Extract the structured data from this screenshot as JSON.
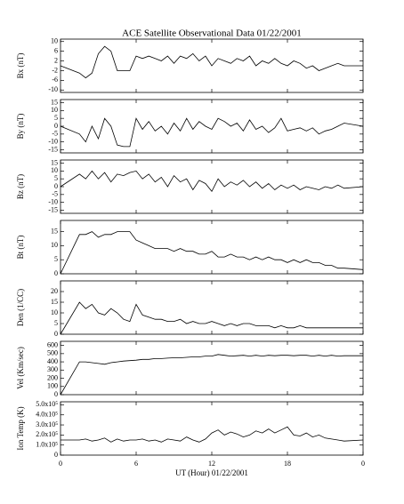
{
  "title": "ACE Satellite Observational Data   01/22/2001",
  "xlabel": "UT (Hour)  01/22/2001",
  "xlim": [
    0,
    24
  ],
  "xticks": [
    0,
    6,
    12,
    18,
    {
      "value": 24,
      "label": "0"
    }
  ],
  "chart_data": [
    {
      "type": "line",
      "ylabel": "Bx (nT)",
      "color": "#000000",
      "ylim": [
        -11,
        11
      ],
      "yticks": [
        -10,
        -6,
        -2,
        2,
        6,
        10
      ],
      "x": [
        0,
        1.5,
        2,
        2.5,
        3,
        3.5,
        4,
        4.5,
        5,
        5.5,
        6,
        6.5,
        7,
        7.5,
        8,
        8.5,
        9,
        9.5,
        10,
        10.5,
        11,
        11.5,
        12,
        12.5,
        13,
        13.5,
        14,
        14.5,
        15,
        15.5,
        16,
        16.5,
        17,
        17.5,
        18,
        18.5,
        19,
        19.5,
        20,
        20.5,
        21,
        21.5,
        22,
        22.5,
        24
      ],
      "values": [
        0,
        -3,
        -5,
        -3,
        5,
        8,
        6,
        -2,
        -2,
        -2,
        4,
        3,
        4,
        3,
        2,
        4,
        1,
        4,
        3,
        5,
        2,
        4,
        0,
        3,
        2,
        1,
        3,
        2,
        4,
        0,
        2,
        1,
        3,
        1,
        0,
        2,
        1,
        -1,
        0,
        -2,
        -1,
        0,
        1,
        0,
        0
      ]
    },
    {
      "type": "line",
      "ylabel": "By (nT)",
      "color": "#000000",
      "ylim": [
        -17,
        17
      ],
      "yticks": [
        -15,
        -10,
        -5,
        0,
        5,
        10,
        15
      ],
      "x": [
        0,
        1.5,
        2,
        2.5,
        3,
        3.5,
        4,
        4.5,
        5,
        5.5,
        6,
        6.5,
        7,
        7.5,
        8,
        8.5,
        9,
        9.5,
        10,
        10.5,
        11,
        11.5,
        12,
        12.5,
        13,
        13.5,
        14,
        14.5,
        15,
        15.5,
        16,
        16.5,
        17,
        17.5,
        18,
        18.5,
        19,
        19.5,
        20,
        20.5,
        21,
        21.5,
        22,
        22.5,
        24
      ],
      "values": [
        0,
        -5,
        -10,
        0,
        -8,
        5,
        0,
        -12,
        -13,
        -13,
        5,
        -2,
        3,
        -3,
        0,
        -5,
        2,
        -3,
        5,
        -2,
        3,
        0,
        -2,
        5,
        3,
        0,
        2,
        -3,
        4,
        -2,
        0,
        -4,
        -1,
        5,
        -3,
        -2,
        -1,
        -3,
        -1,
        -5,
        -3,
        -2,
        0,
        2,
        0
      ]
    },
    {
      "type": "line",
      "ylabel": "Bz (nT)",
      "color": "#000000",
      "ylim": [
        -17,
        17
      ],
      "yticks": [
        -15,
        -10,
        -5,
        0,
        5,
        10,
        15
      ],
      "x": [
        0,
        1.5,
        2,
        2.5,
        3,
        3.5,
        4,
        4.5,
        5,
        5.5,
        6,
        6.5,
        7,
        7.5,
        8,
        8.5,
        9,
        9.5,
        10,
        10.5,
        11,
        11.5,
        12,
        12.5,
        13,
        13.5,
        14,
        14.5,
        15,
        15.5,
        16,
        16.5,
        17,
        17.5,
        18,
        18.5,
        19,
        19.5,
        20,
        20.5,
        21,
        21.5,
        22,
        22.5,
        24
      ],
      "values": [
        0,
        8,
        5,
        10,
        5,
        9,
        3,
        8,
        7,
        9,
        10,
        5,
        8,
        3,
        6,
        0,
        7,
        3,
        5,
        -2,
        4,
        2,
        -3,
        5,
        0,
        3,
        1,
        4,
        0,
        3,
        -1,
        2,
        -2,
        1,
        -1,
        1,
        -2,
        0,
        -1,
        -2,
        0,
        -1,
        1,
        -1,
        0
      ]
    },
    {
      "type": "line",
      "ylabel": "Bt (nT)",
      "color": "#000000",
      "ylim": [
        0,
        19
      ],
      "yticks": [
        0,
        5,
        10,
        15
      ],
      "x": [
        0,
        1.5,
        2,
        2.5,
        3,
        3.5,
        4,
        4.5,
        5,
        5.5,
        6,
        6.5,
        7,
        7.5,
        8,
        8.5,
        9,
        9.5,
        10,
        10.5,
        11,
        11.5,
        12,
        12.5,
        13,
        13.5,
        14,
        14.5,
        15,
        15.5,
        16,
        16.5,
        17,
        17.5,
        18,
        18.5,
        19,
        19.5,
        20,
        20.5,
        21,
        21.5,
        22,
        22.5,
        24
      ],
      "values": [
        0,
        14,
        14,
        15,
        13,
        14,
        14,
        15,
        15,
        15,
        12,
        11,
        10,
        9,
        9,
        9,
        8,
        9,
        8,
        8,
        7,
        7,
        8,
        6,
        6,
        7,
        6,
        6,
        5,
        6,
        5,
        6,
        5,
        5,
        4,
        5,
        4,
        5,
        4,
        4,
        3,
        3,
        2,
        2,
        1.5
      ]
    },
    {
      "type": "line",
      "ylabel": "Den (1/CC)",
      "color": "#000000",
      "ylim": [
        0,
        25
      ],
      "yticks": [
        0,
        5,
        10,
        15,
        20
      ],
      "x": [
        0,
        1.5,
        2,
        2.5,
        3,
        3.5,
        4,
        4.5,
        5,
        5.5,
        6,
        6.5,
        7,
        7.5,
        8,
        8.5,
        9,
        9.5,
        10,
        10.5,
        11,
        11.5,
        12,
        12.5,
        13,
        13.5,
        14,
        14.5,
        15,
        15.5,
        16,
        16.5,
        17,
        17.5,
        18,
        18.5,
        19,
        19.5,
        20,
        20.5,
        21,
        21.5,
        22,
        22.5,
        24
      ],
      "values": [
        0,
        15,
        12,
        14,
        10,
        9,
        12,
        10,
        7,
        6,
        14,
        9,
        8,
        7,
        7,
        6,
        6,
        7,
        5,
        6,
        5,
        5,
        6,
        5,
        4,
        5,
        4,
        5,
        5,
        4,
        4,
        4,
        3,
        4,
        3,
        3,
        4,
        3,
        3,
        3,
        3,
        3,
        3,
        3,
        3
      ]
    },
    {
      "type": "line",
      "ylabel": "Vel (Km/sec)",
      "color": "#000000",
      "ylim": [
        0,
        650
      ],
      "yticks": [
        0,
        100,
        200,
        300,
        400,
        500,
        600
      ],
      "x": [
        0,
        1.5,
        2,
        2.5,
        3,
        3.5,
        4,
        4.5,
        5,
        5.5,
        6,
        6.5,
        7,
        7.5,
        8,
        8.5,
        9,
        9.5,
        10,
        10.5,
        11,
        11.5,
        12,
        12.5,
        13,
        13.5,
        14,
        14.5,
        15,
        15.5,
        16,
        16.5,
        17,
        17.5,
        18,
        18.5,
        19,
        19.5,
        20,
        20.5,
        21,
        21.5,
        22,
        22.5,
        24
      ],
      "values": [
        0,
        400,
        400,
        390,
        380,
        370,
        390,
        400,
        410,
        415,
        420,
        430,
        430,
        440,
        440,
        445,
        450,
        450,
        455,
        460,
        460,
        470,
        470,
        490,
        480,
        470,
        475,
        480,
        470,
        480,
        470,
        480,
        475,
        480,
        480,
        475,
        480,
        480,
        470,
        480,
        470,
        480,
        470,
        475,
        475
      ]
    },
    {
      "type": "line",
      "ylabel": "Ion Temp (K)",
      "color": "#000000",
      "ylim": [
        0,
        530000
      ],
      "yticks": [
        0,
        {
          "value": 100000,
          "label": "1.0x10⁵"
        },
        {
          "value": 200000,
          "label": "2.0x10⁵"
        },
        {
          "value": 300000,
          "label": "3.0x10⁵"
        },
        {
          "value": 400000,
          "label": "4.0x10⁵"
        },
        {
          "value": 500000,
          "label": "5.0x10⁵"
        }
      ],
      "x": [
        0,
        1.5,
        2,
        2.5,
        3,
        3.5,
        4,
        4.5,
        5,
        5.5,
        6,
        6.5,
        7,
        7.5,
        8,
        8.5,
        9,
        9.5,
        10,
        10.5,
        11,
        11.5,
        12,
        12.5,
        13,
        13.5,
        14,
        14.5,
        15,
        15.5,
        16,
        16.5,
        17,
        17.5,
        18,
        18.5,
        19,
        19.5,
        20,
        20.5,
        21,
        21.5,
        22,
        22.5,
        24
      ],
      "values": [
        150000,
        150000,
        160000,
        140000,
        150000,
        170000,
        130000,
        160000,
        140000,
        150000,
        150000,
        160000,
        140000,
        150000,
        130000,
        160000,
        150000,
        140000,
        180000,
        150000,
        130000,
        160000,
        220000,
        250000,
        200000,
        230000,
        210000,
        180000,
        200000,
        240000,
        220000,
        260000,
        220000,
        250000,
        280000,
        200000,
        190000,
        220000,
        180000,
        200000,
        170000,
        160000,
        150000,
        140000,
        150000
      ]
    }
  ]
}
